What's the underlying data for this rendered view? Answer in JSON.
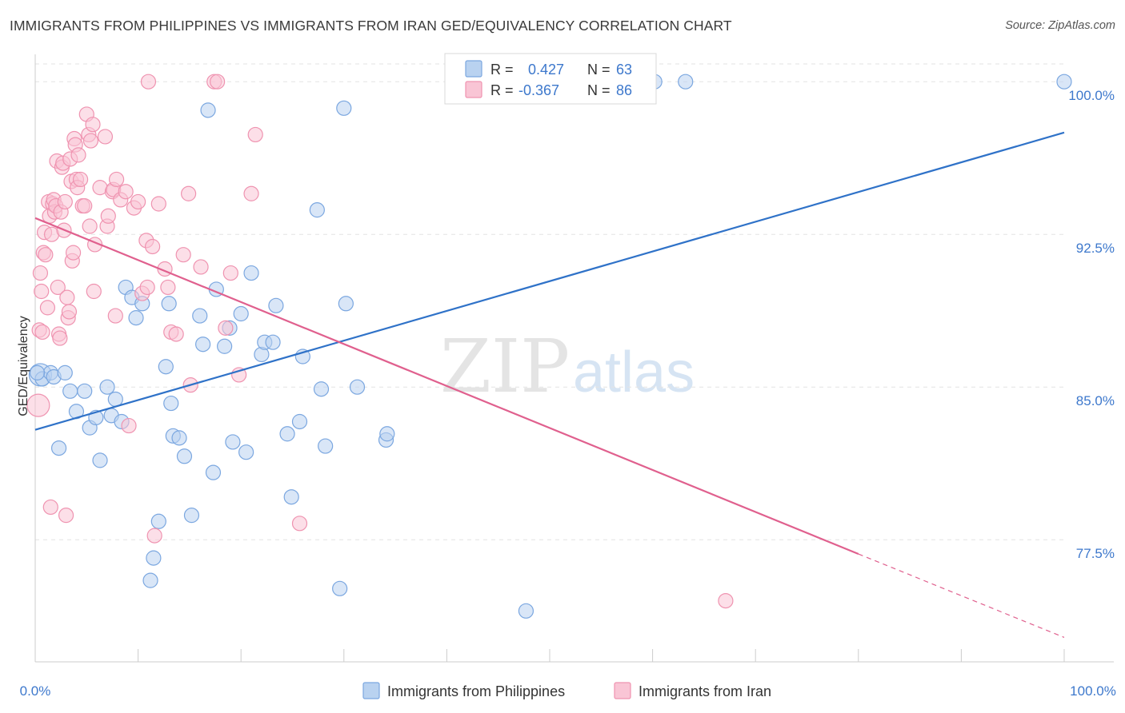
{
  "chart_data": {
    "type": "scatter",
    "title": "IMMIGRANTS FROM PHILIPPINES VS IMMIGRANTS FROM IRAN GED/EQUIVALENCY CORRELATION CHART",
    "source": "Source: ZipAtlas.com",
    "ylabel": "GED/Equivalency",
    "xlabel": "",
    "xlim": [
      0,
      100
    ],
    "ylim": [
      71.5,
      101.5
    ],
    "x_tick_labels": {
      "min": "0.0%",
      "max": "100.0%"
    },
    "y_ticks": [
      {
        "value": 100.0,
        "label": "100.0%"
      },
      {
        "value": 92.5,
        "label": "92.5%"
      },
      {
        "value": 85.0,
        "label": "85.0%"
      },
      {
        "value": 77.5,
        "label": "77.5%"
      }
    ],
    "grid": "horizontal dashed",
    "legend_position": "top-center",
    "watermark": {
      "zip": "ZIP",
      "atlas": "atlas"
    },
    "series": [
      {
        "name": "Immigrants from Philippines",
        "color": "#7ba7e0",
        "fill": "#b9d2f0",
        "line_color": "#2f72c8",
        "stats": {
          "r_label": "R =",
          "r_value": "0.427",
          "n_label": "N =",
          "n_value": "63"
        },
        "trend": {
          "x": [
            0,
            100
          ],
          "y": [
            82.9,
            97.5
          ]
        },
        "points": [
          [
            0.5,
            85.6
          ],
          [
            0.7,
            85.4
          ],
          [
            1.5,
            85.7
          ],
          [
            1.8,
            85.5
          ],
          [
            2.9,
            85.7
          ],
          [
            2.3,
            82.0
          ],
          [
            3.4,
            84.8
          ],
          [
            4.0,
            83.8
          ],
          [
            4.8,
            84.8
          ],
          [
            5.3,
            83.0
          ],
          [
            5.9,
            83.5
          ],
          [
            6.3,
            81.4
          ],
          [
            7.0,
            85.0
          ],
          [
            7.4,
            83.6
          ],
          [
            7.8,
            84.4
          ],
          [
            8.4,
            83.3
          ],
          [
            8.8,
            89.9
          ],
          [
            9.4,
            89.4
          ],
          [
            9.8,
            88.4
          ],
          [
            10.4,
            89.1
          ],
          [
            11.2,
            75.5
          ],
          [
            11.5,
            76.6
          ],
          [
            12.0,
            78.4
          ],
          [
            12.7,
            86.0
          ],
          [
            13.0,
            89.1
          ],
          [
            13.2,
            84.2
          ],
          [
            13.4,
            82.6
          ],
          [
            14.0,
            82.5
          ],
          [
            14.5,
            81.6
          ],
          [
            15.2,
            78.7
          ],
          [
            16.0,
            88.5
          ],
          [
            16.3,
            87.1
          ],
          [
            16.8,
            98.6
          ],
          [
            17.3,
            80.8
          ],
          [
            17.6,
            89.8
          ],
          [
            18.4,
            87.0
          ],
          [
            18.9,
            87.9
          ],
          [
            19.2,
            82.3
          ],
          [
            20.0,
            88.6
          ],
          [
            20.5,
            81.8
          ],
          [
            21.0,
            90.6
          ],
          [
            22.0,
            86.6
          ],
          [
            22.3,
            87.2
          ],
          [
            23.1,
            87.2
          ],
          [
            23.4,
            89.0
          ],
          [
            24.5,
            82.7
          ],
          [
            24.9,
            79.6
          ],
          [
            25.7,
            83.3
          ],
          [
            26.0,
            86.5
          ],
          [
            27.4,
            93.7
          ],
          [
            27.8,
            84.9
          ],
          [
            28.2,
            82.1
          ],
          [
            29.6,
            75.1
          ],
          [
            30.0,
            98.7
          ],
          [
            30.2,
            89.1
          ],
          [
            31.3,
            85.0
          ],
          [
            34.1,
            82.4
          ],
          [
            34.2,
            82.7
          ],
          [
            47.7,
            74.0
          ],
          [
            60.2,
            100.0
          ],
          [
            63.2,
            100.0
          ],
          [
            100.0,
            100.0
          ],
          [
            0.2,
            85.7
          ]
        ]
      },
      {
        "name": "Immigrants from Iran",
        "color": "#ef93b0",
        "fill": "#f9c5d5",
        "line_color": "#e0608e",
        "stats": {
          "r_label": "R =",
          "r_value": "-0.367",
          "n_label": "N =",
          "n_value": "86"
        },
        "trend": {
          "x": [
            0,
            80
          ],
          "y": [
            93.3,
            76.8
          ]
        },
        "trend_dashed": {
          "x": [
            80,
            100
          ],
          "y": [
            76.8,
            72.7
          ]
        },
        "points": [
          [
            0.3,
            84.1
          ],
          [
            0.4,
            87.8
          ],
          [
            0.5,
            90.6
          ],
          [
            0.6,
            89.7
          ],
          [
            0.7,
            87.7
          ],
          [
            0.8,
            91.6
          ],
          [
            0.9,
            92.6
          ],
          [
            1.0,
            91.5
          ],
          [
            1.2,
            88.9
          ],
          [
            1.3,
            94.1
          ],
          [
            1.4,
            93.4
          ],
          [
            1.5,
            79.1
          ],
          [
            1.6,
            92.5
          ],
          [
            1.7,
            94.0
          ],
          [
            1.8,
            94.2
          ],
          [
            1.9,
            93.6
          ],
          [
            2.0,
            93.9
          ],
          [
            2.1,
            96.1
          ],
          [
            2.2,
            89.9
          ],
          [
            2.3,
            87.6
          ],
          [
            2.4,
            87.4
          ],
          [
            2.5,
            93.6
          ],
          [
            2.6,
            95.8
          ],
          [
            2.7,
            96.0
          ],
          [
            2.8,
            92.7
          ],
          [
            2.9,
            94.1
          ],
          [
            3.0,
            78.7
          ],
          [
            3.1,
            89.4
          ],
          [
            3.2,
            88.4
          ],
          [
            3.3,
            88.7
          ],
          [
            3.4,
            96.2
          ],
          [
            3.5,
            95.1
          ],
          [
            3.6,
            91.2
          ],
          [
            3.7,
            91.6
          ],
          [
            3.8,
            97.2
          ],
          [
            3.9,
            96.9
          ],
          [
            4.0,
            95.2
          ],
          [
            4.1,
            94.8
          ],
          [
            4.2,
            96.4
          ],
          [
            4.4,
            95.2
          ],
          [
            4.6,
            93.9
          ],
          [
            4.8,
            93.9
          ],
          [
            5.0,
            98.4
          ],
          [
            5.2,
            97.4
          ],
          [
            5.3,
            92.9
          ],
          [
            5.4,
            97.1
          ],
          [
            5.6,
            97.9
          ],
          [
            5.7,
            89.7
          ],
          [
            5.8,
            92.0
          ],
          [
            6.3,
            94.8
          ],
          [
            6.8,
            97.3
          ],
          [
            7.0,
            92.9
          ],
          [
            7.1,
            93.4
          ],
          [
            7.5,
            94.6
          ],
          [
            7.6,
            94.7
          ],
          [
            7.8,
            88.5
          ],
          [
            7.9,
            95.2
          ],
          [
            8.3,
            94.2
          ],
          [
            8.8,
            94.6
          ],
          [
            9.1,
            83.1
          ],
          [
            9.6,
            93.8
          ],
          [
            10.0,
            94.1
          ],
          [
            10.4,
            89.6
          ],
          [
            10.8,
            92.2
          ],
          [
            10.9,
            89.9
          ],
          [
            11.4,
            91.9
          ],
          [
            11.6,
            77.7
          ],
          [
            12.0,
            94.0
          ],
          [
            12.6,
            90.8
          ],
          [
            12.9,
            89.9
          ],
          [
            13.2,
            87.7
          ],
          [
            13.7,
            87.6
          ],
          [
            14.4,
            91.5
          ],
          [
            14.9,
            94.5
          ],
          [
            15.1,
            85.1
          ],
          [
            16.1,
            90.9
          ],
          [
            17.4,
            100.0
          ],
          [
            17.7,
            100.0
          ],
          [
            18.5,
            87.9
          ],
          [
            19.0,
            90.6
          ],
          [
            19.8,
            85.6
          ],
          [
            21.0,
            94.5
          ],
          [
            21.4,
            97.4
          ],
          [
            25.7,
            78.3
          ],
          [
            67.1,
            74.5
          ],
          [
            11.0,
            100.0
          ]
        ]
      }
    ]
  }
}
